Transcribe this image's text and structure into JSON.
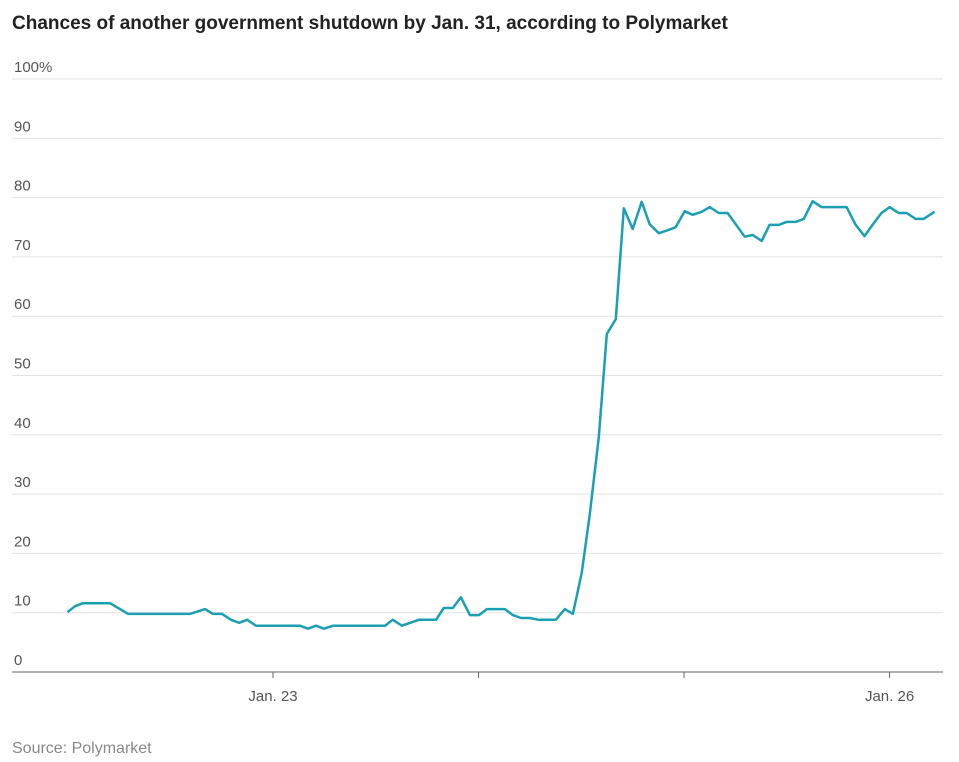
{
  "chart_data": {
    "type": "line",
    "title": "Chances of another government shutdown by Jan. 31, according to Polymarket",
    "source": "Source: Polymarket",
    "color": "#1b9fb3",
    "x": [
      22.0,
      22.037,
      22.076,
      22.11,
      22.207,
      22.295,
      22.402,
      22.596,
      22.669,
      22.708,
      22.752,
      22.796,
      22.835,
      22.874,
      22.917,
      23.131,
      23.17,
      23.209,
      23.248,
      23.292,
      23.545,
      23.583,
      23.627,
      23.71,
      23.793,
      23.831,
      23.875,
      23.914,
      23.958,
      24.002,
      24.041,
      24.128,
      24.167,
      24.206,
      24.25,
      24.293,
      24.376,
      24.42,
      24.459,
      24.502,
      24.541,
      24.585,
      24.624,
      24.668,
      24.707,
      24.75,
      24.794,
      24.833,
      24.877,
      24.921,
      24.959,
      25.003,
      25.042,
      25.086,
      25.125,
      25.169,
      25.212,
      25.295,
      25.334,
      25.378,
      25.416,
      25.46,
      25.499,
      25.543,
      25.582,
      25.626,
      25.669,
      25.791,
      25.835,
      25.878,
      25.917,
      25.961,
      26.0,
      26.044,
      26.083,
      26.127,
      26.165,
      26.219
    ],
    "values": [
      10.1,
      11.1,
      11.6,
      11.6,
      11.6,
      9.8,
      9.8,
      9.8,
      10.6,
      9.8,
      9.8,
      8.8,
      8.3,
      8.8,
      7.8,
      7.8,
      7.3,
      7.8,
      7.3,
      7.8,
      7.8,
      8.8,
      7.8,
      8.8,
      8.8,
      10.8,
      10.8,
      12.6,
      9.6,
      9.6,
      10.6,
      10.6,
      9.6,
      9.1,
      9.1,
      8.8,
      8.8,
      10.6,
      9.8,
      16.7,
      26.5,
      39.6,
      57,
      59.5,
      78.2,
      74.7,
      79.3,
      75.5,
      74,
      74.5,
      75,
      77.7,
      77.1,
      77.6,
      78.4,
      77.4,
      77.4,
      73.4,
      73.7,
      72.7,
      75.4,
      75.4,
      75.9,
      75.9,
      76.4,
      79.4,
      78.4,
      78.4,
      75.4,
      73.5,
      75.4,
      77.4,
      78.4,
      77.4,
      77.4,
      76.4,
      76.4,
      77.6
    ],
    "xlim": [
      21.73,
      26.26
    ],
    "xticks": [
      {
        "value": 23,
        "label": "Jan. 23"
      },
      {
        "value": 26,
        "label": "Jan. 26"
      }
    ],
    "xminor_ticks": [
      24,
      25
    ],
    "ylim": [
      0,
      100
    ],
    "yticks": [
      0,
      10,
      20,
      30,
      40,
      50,
      60,
      70,
      80,
      90,
      {
        "value": 100,
        "label": "100%"
      }
    ],
    "grid": true
  }
}
